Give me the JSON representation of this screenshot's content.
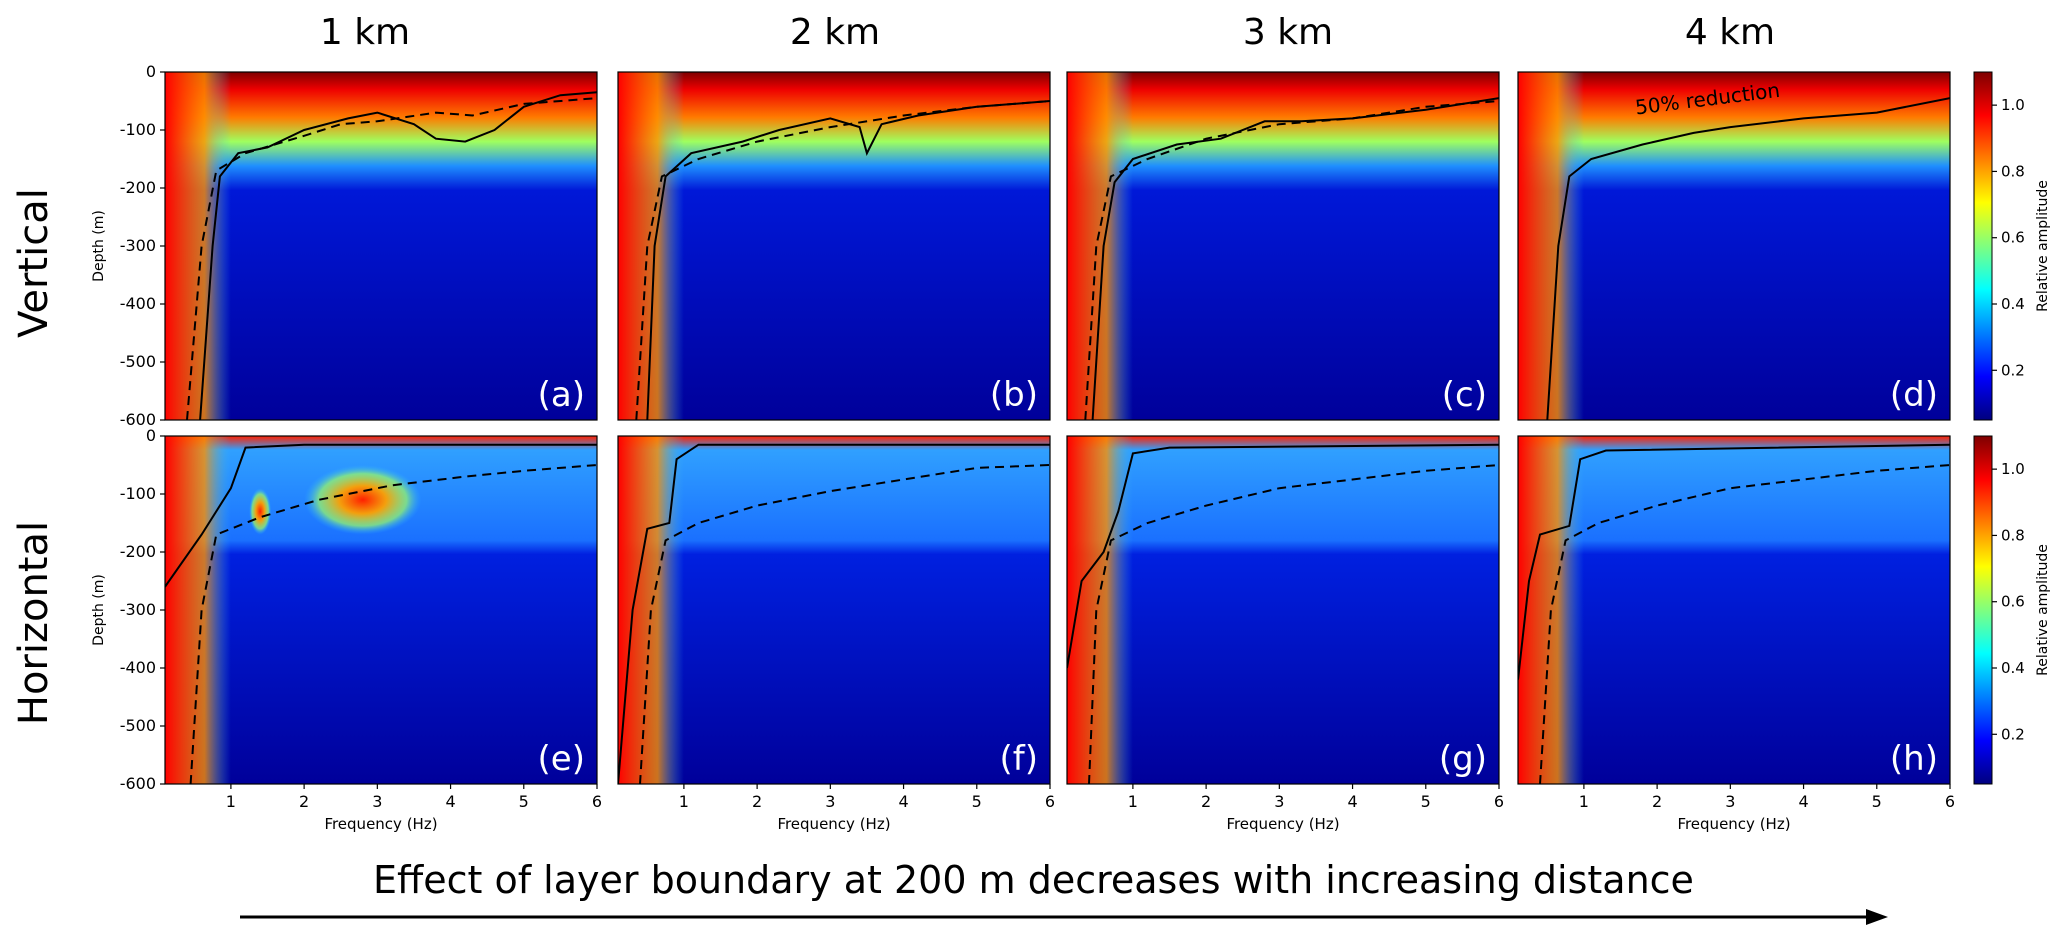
{
  "column_titles": [
    "1 km",
    "2 km",
    "3 km",
    "4 km"
  ],
  "row_titles": [
    "Vertical",
    "Horizontal"
  ],
  "bottom_caption": "Effect of layer boundary at 200 m decreases with increasing distance",
  "colors": {
    "colormap": [
      "#00007f",
      "#0000ff",
      "#007fff",
      "#00ffff",
      "#7fff7f",
      "#ffff00",
      "#ff7f00",
      "#ff0000",
      "#7f0000"
    ],
    "contour_line": "#000000",
    "arrow": "#000000"
  },
  "chart_data": {
    "type": "heatmap",
    "xlabel": "Frequency (Hz)",
    "ylabel": "Depth (m)",
    "xlim": [
      0.1,
      6
    ],
    "ylim": [
      -600,
      0
    ],
    "xticks": [
      1,
      2,
      3,
      4,
      5,
      6
    ],
    "yticks": [
      0,
      -100,
      -200,
      -300,
      -400,
      -500,
      -600
    ],
    "colorbar": {
      "label": "Relative amplitude",
      "range": [
        0.05,
        1.1
      ],
      "ticks": [
        0.2,
        0.4,
        0.6,
        0.8,
        1.0
      ]
    },
    "annotation": "50% reduction",
    "panels": [
      {
        "label": "(a)",
        "component": "Vertical",
        "distance": "1 km",
        "solid_contour": [
          [
            0.58,
            -600
          ],
          [
            0.75,
            -300
          ],
          [
            0.85,
            -180
          ],
          [
            1.1,
            -140
          ],
          [
            1.5,
            -130
          ],
          [
            2.0,
            -100
          ],
          [
            2.6,
            -80
          ],
          [
            3.0,
            -70
          ],
          [
            3.5,
            -90
          ],
          [
            3.8,
            -115
          ],
          [
            4.2,
            -120
          ],
          [
            4.6,
            -100
          ],
          [
            5.0,
            -60
          ],
          [
            5.5,
            -40
          ],
          [
            6,
            -35
          ]
        ],
        "dashed_contour": [
          [
            0.4,
            -600
          ],
          [
            0.6,
            -300
          ],
          [
            0.8,
            -170
          ],
          [
            1.2,
            -140
          ],
          [
            2.0,
            -110
          ],
          [
            2.5,
            -90
          ],
          [
            3.0,
            -85
          ],
          [
            3.8,
            -70
          ],
          [
            4.3,
            -75
          ],
          [
            5.0,
            -55
          ],
          [
            6,
            -45
          ]
        ],
        "high_blobs": []
      },
      {
        "label": "(b)",
        "component": "Vertical",
        "distance": "2 km",
        "solid_contour": [
          [
            0.5,
            -600
          ],
          [
            0.6,
            -300
          ],
          [
            0.75,
            -180
          ],
          [
            1.1,
            -140
          ],
          [
            1.8,
            -120
          ],
          [
            2.3,
            -100
          ],
          [
            3.0,
            -80
          ],
          [
            3.4,
            -95
          ],
          [
            3.5,
            -140
          ],
          [
            3.7,
            -90
          ],
          [
            4.2,
            -75
          ],
          [
            5.0,
            -60
          ],
          [
            6,
            -50
          ]
        ],
        "dashed_contour": [
          [
            0.35,
            -600
          ],
          [
            0.5,
            -300
          ],
          [
            0.7,
            -180
          ],
          [
            1.2,
            -150
          ],
          [
            2.0,
            -120
          ],
          [
            3.0,
            -95
          ],
          [
            4.0,
            -75
          ],
          [
            5.0,
            -60
          ],
          [
            6,
            -50
          ]
        ],
        "high_blobs": []
      },
      {
        "label": "(c)",
        "component": "Vertical",
        "distance": "3 km",
        "solid_contour": [
          [
            0.45,
            -600
          ],
          [
            0.6,
            -300
          ],
          [
            0.75,
            -190
          ],
          [
            1.0,
            -150
          ],
          [
            1.6,
            -125
          ],
          [
            2.2,
            -115
          ],
          [
            2.8,
            -85
          ],
          [
            3.3,
            -85
          ],
          [
            4.0,
            -80
          ],
          [
            5.0,
            -65
          ],
          [
            6,
            -45
          ]
        ],
        "dashed_contour": [
          [
            0.35,
            -600
          ],
          [
            0.5,
            -300
          ],
          [
            0.7,
            -180
          ],
          [
            1.2,
            -150
          ],
          [
            2.0,
            -115
          ],
          [
            3.0,
            -90
          ],
          [
            4.0,
            -80
          ],
          [
            5.0,
            -60
          ],
          [
            6,
            -50
          ]
        ],
        "high_blobs": []
      },
      {
        "label": "(d)",
        "component": "Vertical",
        "distance": "4 km",
        "solid_contour": [
          [
            0.5,
            -600
          ],
          [
            0.65,
            -300
          ],
          [
            0.8,
            -180
          ],
          [
            1.1,
            -150
          ],
          [
            1.8,
            -125
          ],
          [
            2.5,
            -105
          ],
          [
            3.0,
            -95
          ],
          [
            4.0,
            -80
          ],
          [
            5.0,
            -70
          ],
          [
            6,
            -45
          ]
        ],
        "dashed_contour": [],
        "high_blobs": []
      },
      {
        "label": "(e)",
        "component": "Horizontal",
        "distance": "1 km",
        "solid_contour": [
          [
            0.1,
            -260
          ],
          [
            0.6,
            -170
          ],
          [
            1.0,
            -90
          ],
          [
            1.2,
            -20
          ],
          [
            2.0,
            -15
          ],
          [
            6,
            -15
          ]
        ],
        "dashed_contour": [
          [
            0.45,
            -600
          ],
          [
            0.6,
            -300
          ],
          [
            0.8,
            -170
          ],
          [
            1.4,
            -140
          ],
          [
            2.2,
            -110
          ],
          [
            3.2,
            -85
          ],
          [
            4.2,
            -70
          ],
          [
            5.0,
            -60
          ],
          [
            6,
            -50
          ]
        ],
        "high_blobs": [
          {
            "cx": 2.8,
            "cy": -110,
            "rx": 0.8,
            "ry": 60
          },
          {
            "cx": 1.4,
            "cy": -130,
            "rx": 0.15,
            "ry": 40
          }
        ]
      },
      {
        "label": "(f)",
        "component": "Horizontal",
        "distance": "2 km",
        "solid_contour": [
          [
            0.1,
            -600
          ],
          [
            0.3,
            -300
          ],
          [
            0.5,
            -160
          ],
          [
            0.8,
            -150
          ],
          [
            0.9,
            -40
          ],
          [
            1.2,
            -15
          ],
          [
            6,
            -15
          ]
        ],
        "dashed_contour": [
          [
            0.4,
            -600
          ],
          [
            0.55,
            -300
          ],
          [
            0.75,
            -180
          ],
          [
            1.2,
            -150
          ],
          [
            2.0,
            -120
          ],
          [
            3.0,
            -95
          ],
          [
            4.0,
            -75
          ],
          [
            5.0,
            -55
          ],
          [
            6,
            -50
          ]
        ],
        "high_blobs": []
      },
      {
        "label": "(g)",
        "component": "Horizontal",
        "distance": "3 km",
        "solid_contour": [
          [
            0.1,
            -400
          ],
          [
            0.3,
            -250
          ],
          [
            0.6,
            -200
          ],
          [
            0.8,
            -130
          ],
          [
            1.0,
            -30
          ],
          [
            1.5,
            -20
          ],
          [
            6,
            -15
          ]
        ],
        "dashed_contour": [
          [
            0.4,
            -600
          ],
          [
            0.5,
            -300
          ],
          [
            0.7,
            -180
          ],
          [
            1.2,
            -150
          ],
          [
            2.0,
            -120
          ],
          [
            3.0,
            -90
          ],
          [
            4.0,
            -75
          ],
          [
            5.0,
            -60
          ],
          [
            6,
            -50
          ]
        ],
        "high_blobs": []
      },
      {
        "label": "(h)",
        "component": "Horizontal",
        "distance": "4 km",
        "solid_contour": [
          [
            0.1,
            -420
          ],
          [
            0.25,
            -250
          ],
          [
            0.4,
            -170
          ],
          [
            0.8,
            -155
          ],
          [
            0.95,
            -40
          ],
          [
            1.3,
            -25
          ],
          [
            6,
            -15
          ]
        ],
        "dashed_contour": [
          [
            0.4,
            -600
          ],
          [
            0.55,
            -300
          ],
          [
            0.75,
            -180
          ],
          [
            1.2,
            -150
          ],
          [
            2.0,
            -120
          ],
          [
            3.0,
            -90
          ],
          [
            4.0,
            -75
          ],
          [
            5.0,
            -60
          ],
          [
            6,
            -50
          ]
        ],
        "high_blobs": []
      }
    ]
  }
}
